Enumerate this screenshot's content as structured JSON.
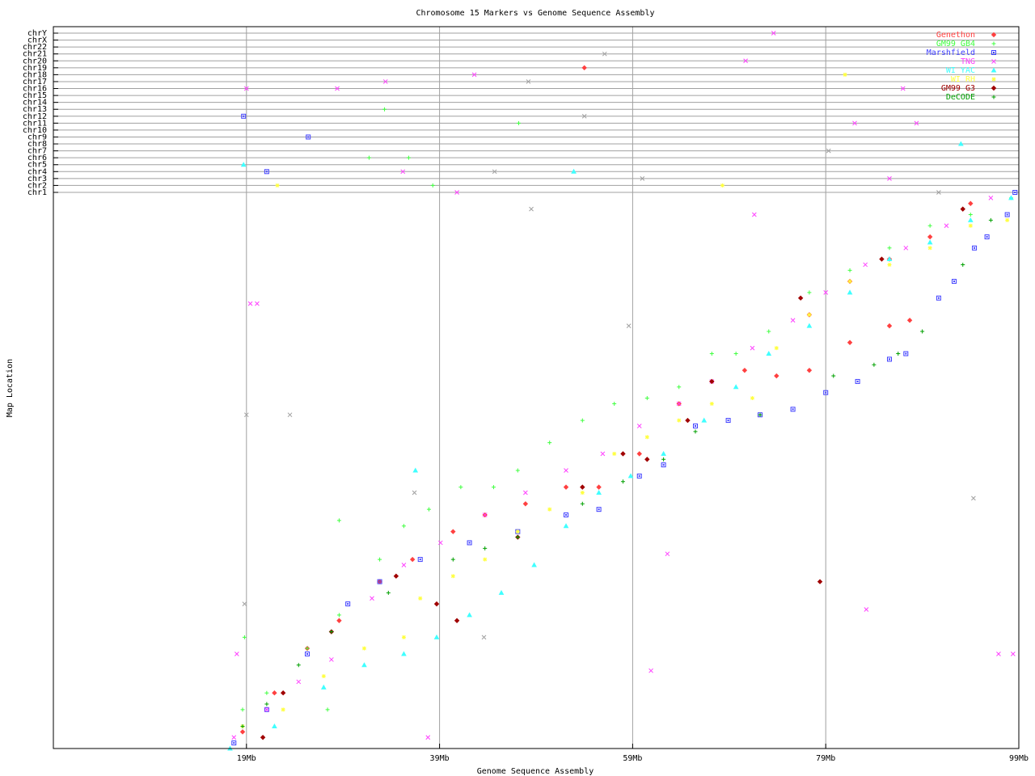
{
  "chart_data": {
    "type": "scatter",
    "title": "Chromosome 15 Markers vs Genome Sequence Assembly",
    "xlabel": "Genome Sequence Assembly",
    "ylabel": "Map Location",
    "xlim": [
      -1,
      99
    ],
    "ylim": [
      0,
      1
    ],
    "x_ticks": [
      19,
      39,
      59,
      79,
      99
    ],
    "x_tick_labels": [
      "19Mb",
      "39Mb",
      "59Mb",
      "79Mb",
      "99Mb"
    ],
    "grid": true,
    "legend_position": "top-right",
    "chr_rows": [
      "chrY",
      "chrX",
      "chr22",
      "chr21",
      "chr20",
      "chr19",
      "chr18",
      "chr17",
      "chr16",
      "chr15",
      "chr14",
      "chr13",
      "chr12",
      "chr11",
      "chr10",
      "chr9",
      "chr8",
      "chr7",
      "chr6",
      "chr5",
      "chr4",
      "chr3",
      "chr2",
      "chr1"
    ],
    "series": [
      {
        "name": "Genethon",
        "color": "#ff4040",
        "marker": "diamond",
        "points": [
          [
            18.6,
            0.03
          ],
          [
            21.9,
            0.1
          ],
          [
            25.3,
            0.18
          ],
          [
            28.6,
            0.23
          ],
          [
            32.8,
            0.3
          ],
          [
            36.2,
            0.34
          ],
          [
            40.4,
            0.39
          ],
          [
            43.7,
            0.42
          ],
          [
            47.9,
            0.44
          ],
          [
            52.1,
            0.47
          ],
          [
            55.5,
            0.47
          ],
          [
            59.7,
            0.53
          ],
          [
            63.8,
            0.62
          ],
          [
            67.2,
            0.66
          ],
          [
            70.6,
            0.68
          ],
          [
            73.9,
            0.67
          ],
          [
            77.3,
            0.68
          ],
          [
            81.5,
            0.73
          ],
          [
            85.6,
            0.76
          ],
          [
            87.7,
            0.77
          ],
          [
            77.3,
            0.78
          ],
          [
            81.5,
            0.84
          ],
          [
            85.6,
            0.88
          ],
          [
            89.8,
            0.92
          ],
          [
            94.0,
            0.98
          ],
          [
            54.0,
            "chr19"
          ]
        ]
      },
      {
        "name": "GM99 GB4",
        "color": "#40ff40",
        "marker": "plus",
        "points": [
          [
            18.6,
            0.07
          ],
          [
            21.1,
            0.1
          ],
          [
            25.3,
            0.18
          ],
          [
            28.6,
            0.24
          ],
          [
            32.8,
            0.34
          ],
          [
            35.3,
            0.4
          ],
          [
            37.9,
            0.43
          ],
          [
            41.2,
            0.47
          ],
          [
            44.6,
            0.47
          ],
          [
            47.1,
            0.5
          ],
          [
            50.4,
            0.55
          ],
          [
            53.8,
            0.59
          ],
          [
            57.1,
            0.62
          ],
          [
            60.5,
            0.63
          ],
          [
            63.8,
            0.65
          ],
          [
            67.2,
            0.71
          ],
          [
            69.7,
            0.71
          ],
          [
            73.1,
            0.75
          ],
          [
            77.3,
            0.82
          ],
          [
            81.5,
            0.86
          ],
          [
            85.6,
            0.9
          ],
          [
            89.8,
            0.94
          ],
          [
            94.0,
            0.96
          ],
          [
            98.2,
            0.99
          ],
          [
            28.6,
            0.41
          ],
          [
            18.8,
            0.2
          ],
          [
            27.4,
            0.07
          ],
          [
            33.3,
            "chr13"
          ],
          [
            31.7,
            "chr6"
          ],
          [
            35.8,
            "chr6"
          ],
          [
            38.3,
            "chr2"
          ],
          [
            47.2,
            "chr11"
          ]
        ]
      },
      {
        "name": "Marshfield",
        "color": "#4040ff",
        "marker": "square",
        "points": [
          [
            17.7,
            0.01
          ],
          [
            21.1,
            0.07
          ],
          [
            25.3,
            0.17
          ],
          [
            29.5,
            0.26
          ],
          [
            32.8,
            0.3
          ],
          [
            37.0,
            0.34
          ],
          [
            42.1,
            0.37
          ],
          [
            47.1,
            0.39
          ],
          [
            52.1,
            0.42
          ],
          [
            55.5,
            0.43
          ],
          [
            59.7,
            0.49
          ],
          [
            62.2,
            0.51
          ],
          [
            65.5,
            0.58
          ],
          [
            68.9,
            0.59
          ],
          [
            72.2,
            0.6
          ],
          [
            75.6,
            0.61
          ],
          [
            79.0,
            0.64
          ],
          [
            82.3,
            0.66
          ],
          [
            85.6,
            0.7
          ],
          [
            87.3,
            0.71
          ],
          [
            90.7,
            0.81
          ],
          [
            92.3,
            0.84
          ],
          [
            94.4,
            0.9
          ],
          [
            95.7,
            0.92
          ],
          [
            97.8,
            0.96
          ],
          [
            18.7,
            "chr12"
          ],
          [
            25.4,
            "chr9"
          ],
          [
            21.1,
            "chr4"
          ],
          [
            98.6,
            "chr1"
          ]
        ]
      },
      {
        "name": "TNG",
        "color": "#ff40ff",
        "marker": "cross",
        "points": [
          [
            17.7,
            0.02
          ],
          [
            21.1,
            0.07
          ],
          [
            24.4,
            0.12
          ],
          [
            27.8,
            0.16
          ],
          [
            32.0,
            0.27
          ],
          [
            35.3,
            0.33
          ],
          [
            39.1,
            0.37
          ],
          [
            43.7,
            0.42
          ],
          [
            47.9,
            0.46
          ],
          [
            52.1,
            0.5
          ],
          [
            55.9,
            0.53
          ],
          [
            59.7,
            0.58
          ],
          [
            63.8,
            0.62
          ],
          [
            67.2,
            0.66
          ],
          [
            71.4,
            0.72
          ],
          [
            75.6,
            0.77
          ],
          [
            79.0,
            0.82
          ],
          [
            83.1,
            0.87
          ],
          [
            87.3,
            0.9
          ],
          [
            91.5,
            0.94
          ],
          [
            96.1,
            0.99
          ],
          [
            19.4,
            0.8
          ],
          [
            20.1,
            0.8
          ],
          [
            71.6,
            0.96
          ],
          [
            62.6,
            0.35
          ],
          [
            83.2,
            0.25
          ],
          [
            60.9,
            0.14
          ],
          [
            96.9,
            0.17
          ],
          [
            98.4,
            0.17
          ],
          [
            37.8,
            0.02
          ],
          [
            18.0,
            0.17
          ],
          [
            19.0,
            "chr16"
          ],
          [
            28.4,
            "chr16"
          ],
          [
            33.4,
            "chr17"
          ],
          [
            42.6,
            "chr18"
          ],
          [
            73.6,
            "chrY"
          ],
          [
            70.7,
            "chr20"
          ],
          [
            87.0,
            "chr16"
          ],
          [
            82.0,
            "chr11"
          ],
          [
            88.4,
            "chr11"
          ],
          [
            85.6,
            "chr3"
          ],
          [
            35.2,
            "chr4"
          ],
          [
            40.8,
            "chr1"
          ]
        ]
      },
      {
        "name": "WI YAC",
        "color": "#40ffff",
        "marker": "triangle",
        "points": [
          [
            17.3,
            0.0
          ],
          [
            21.9,
            0.04
          ],
          [
            27.0,
            0.11
          ],
          [
            31.2,
            0.15
          ],
          [
            35.3,
            0.17
          ],
          [
            38.7,
            0.2
          ],
          [
            42.1,
            0.24
          ],
          [
            45.4,
            0.28
          ],
          [
            48.8,
            0.33
          ],
          [
            52.1,
            0.4
          ],
          [
            55.5,
            0.46
          ],
          [
            58.8,
            0.49
          ],
          [
            62.2,
            0.53
          ],
          [
            66.4,
            0.59
          ],
          [
            69.7,
            0.65
          ],
          [
            73.1,
            0.71
          ],
          [
            77.3,
            0.76
          ],
          [
            81.5,
            0.82
          ],
          [
            85.6,
            0.88
          ],
          [
            89.8,
            0.91
          ],
          [
            94.0,
            0.95
          ],
          [
            98.2,
            0.99
          ],
          [
            36.5,
            0.5
          ],
          [
            18.7,
            "chr5"
          ],
          [
            52.9,
            "chr4"
          ],
          [
            93.0,
            "chr8"
          ]
        ]
      },
      {
        "name": "WI RH",
        "color": "#ffff40",
        "marker": "star",
        "points": [
          [
            18.6,
            0.04
          ],
          [
            22.8,
            0.07
          ],
          [
            27.0,
            0.13
          ],
          [
            31.2,
            0.18
          ],
          [
            35.3,
            0.2
          ],
          [
            37.0,
            0.27
          ],
          [
            40.4,
            0.31
          ],
          [
            43.7,
            0.34
          ],
          [
            47.1,
            0.39
          ],
          [
            50.4,
            0.43
          ],
          [
            53.8,
            0.46
          ],
          [
            57.1,
            0.53
          ],
          [
            60.5,
            0.56
          ],
          [
            63.8,
            0.59
          ],
          [
            67.2,
            0.62
          ],
          [
            71.4,
            0.63
          ],
          [
            73.9,
            0.72
          ],
          [
            77.3,
            0.78
          ],
          [
            81.5,
            0.84
          ],
          [
            85.6,
            0.87
          ],
          [
            89.8,
            0.9
          ],
          [
            94.0,
            0.94
          ],
          [
            97.8,
            0.95
          ],
          [
            22.2,
            "chr2"
          ],
          [
            81.0,
            "chr18"
          ],
          [
            68.3,
            "chr2"
          ]
        ]
      },
      {
        "name": "GM99 G3",
        "color": "#a00000",
        "marker": "diamond",
        "points": [
          [
            20.7,
            0.02
          ],
          [
            22.8,
            0.1
          ],
          [
            27.8,
            0.21
          ],
          [
            34.5,
            0.31
          ],
          [
            38.7,
            0.26
          ],
          [
            40.8,
            0.23
          ],
          [
            47.1,
            0.38
          ],
          [
            53.8,
            0.47
          ],
          [
            58.0,
            0.53
          ],
          [
            60.5,
            0.52
          ],
          [
            64.7,
            0.59
          ],
          [
            67.2,
            0.66
          ],
          [
            76.4,
            0.81
          ],
          [
            84.8,
            0.88
          ],
          [
            93.2,
            0.97
          ],
          [
            78.4,
            0.3
          ]
        ]
      },
      {
        "name": "DeCODE",
        "color": "#00a000",
        "marker": "plus",
        "points": [
          [
            18.6,
            0.04
          ],
          [
            21.1,
            0.08
          ],
          [
            24.4,
            0.15
          ],
          [
            27.8,
            0.21
          ],
          [
            33.7,
            0.28
          ],
          [
            40.4,
            0.34
          ],
          [
            43.7,
            0.36
          ],
          [
            47.1,
            0.38
          ],
          [
            53.8,
            0.44
          ],
          [
            58.0,
            0.48
          ],
          [
            62.2,
            0.52
          ],
          [
            65.5,
            0.57
          ],
          [
            72.2,
            0.6
          ],
          [
            79.8,
            0.67
          ],
          [
            84.0,
            0.69
          ],
          [
            86.5,
            0.71
          ],
          [
            89.0,
            0.75
          ],
          [
            93.2,
            0.87
          ],
          [
            96.1,
            0.95
          ]
        ]
      },
      {
        "color": "#a0a0a0",
        "marker": "cross",
        "points": [
          [
            19.0,
            0.6
          ],
          [
            23.5,
            0.6
          ],
          [
            36.4,
            0.46
          ],
          [
            58.6,
            0.76
          ],
          [
            94.3,
            0.45
          ],
          [
            18.8,
            0.26
          ],
          [
            43.6,
            0.2
          ],
          [
            48.5,
            0.97
          ],
          [
            56.1,
            "chr21"
          ],
          [
            48.2,
            "chr17"
          ],
          [
            54.0,
            "chr12"
          ],
          [
            44.7,
            "chr4"
          ],
          [
            60.0,
            "chr3"
          ],
          [
            79.3,
            "chr7"
          ],
          [
            90.7,
            "chr1"
          ]
        ]
      }
    ]
  }
}
